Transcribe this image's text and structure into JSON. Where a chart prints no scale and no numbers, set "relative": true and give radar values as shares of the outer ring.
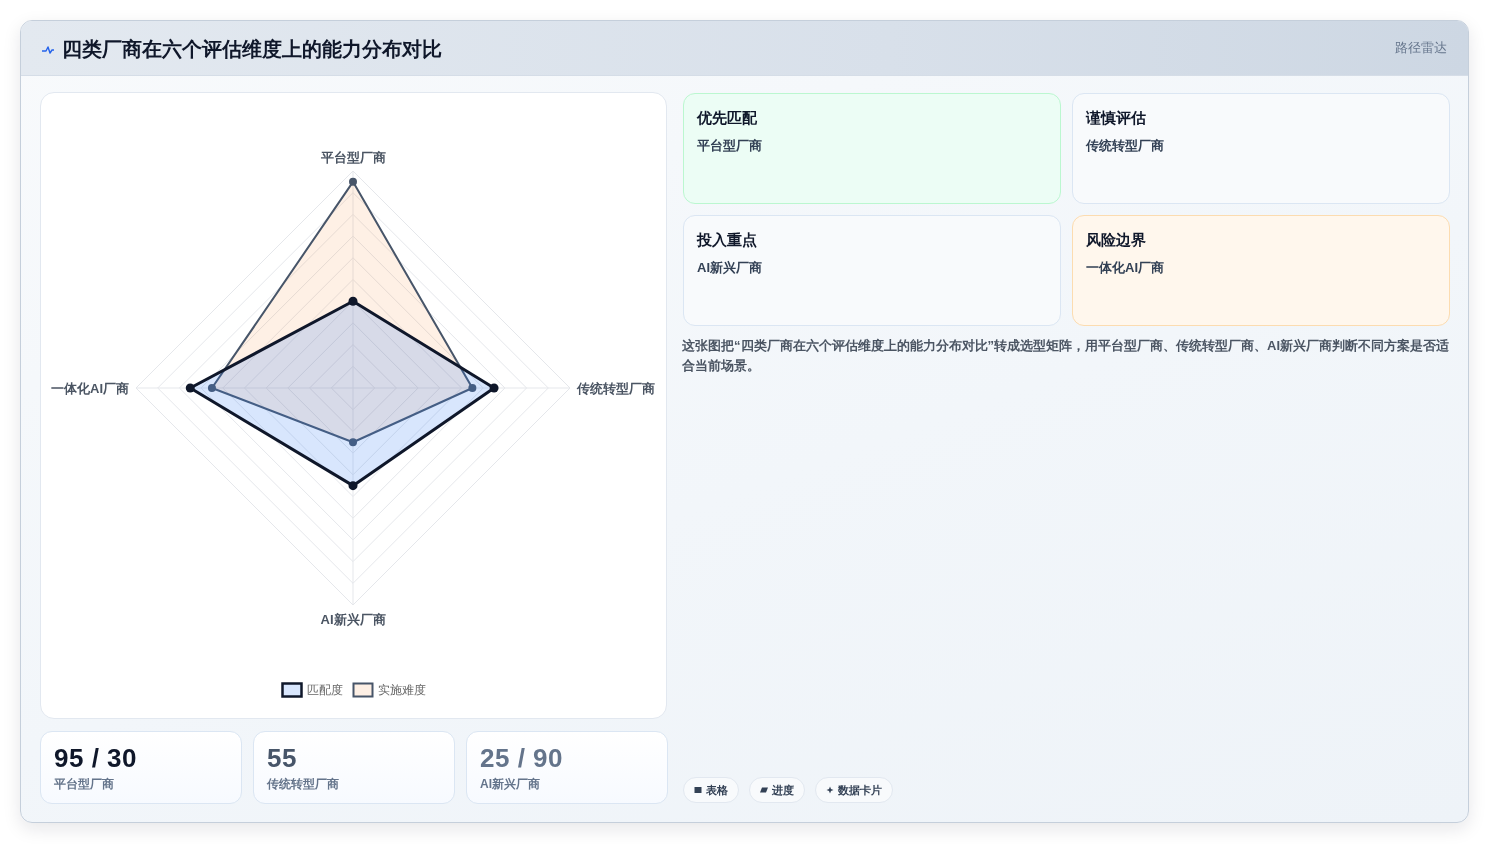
{
  "chart_data": [
    {
      "type": "radar",
      "title": "四类厂商在六个评估维度上的能力分布对比",
      "categories": [
        "平台型厂商",
        "传统转型厂商",
        "AI新兴厂商",
        "一体化AI厂商"
      ],
      "series": [
        {
          "name": "匹配度",
          "color": "#0f172a",
          "values": [
            0.4,
            0.65,
            0.45,
            0.75
          ]
        },
        {
          "name": "实施难度",
          "color": "#475569",
          "values": [
            0.95,
            0.55,
            0.25,
            0.65
          ]
        }
      ],
      "relative": true,
      "grid": true,
      "legend": "bottom",
      "marker": "circle",
      "line_style": "solid"
    },
    {
      "type": "other",
      "title": "路径雷达",
      "annotations": [
        "优先匹配",
        "平台型厂商",
        "谨慎评估",
        "传统转型厂商",
        "投入重点",
        "AI新兴厂商",
        "风险边界",
        "一体化AI厂商",
        "这张图把“四类厂商在六个评估维度上的能力分布对比”转成选型矩阵，用平台型厂商、传统转型厂商、AI新兴厂商判断不同方案是否适合当前场景。",
        "表格",
        "进度",
        "数据卡片"
      ]
    },
    {
      "type": "other",
      "annotations": [
        "95 / 30",
        "平台型厂商",
        "55",
        "传统转型厂商",
        "25 / 90",
        "AI新兴厂商"
      ]
    }
  ]
}
